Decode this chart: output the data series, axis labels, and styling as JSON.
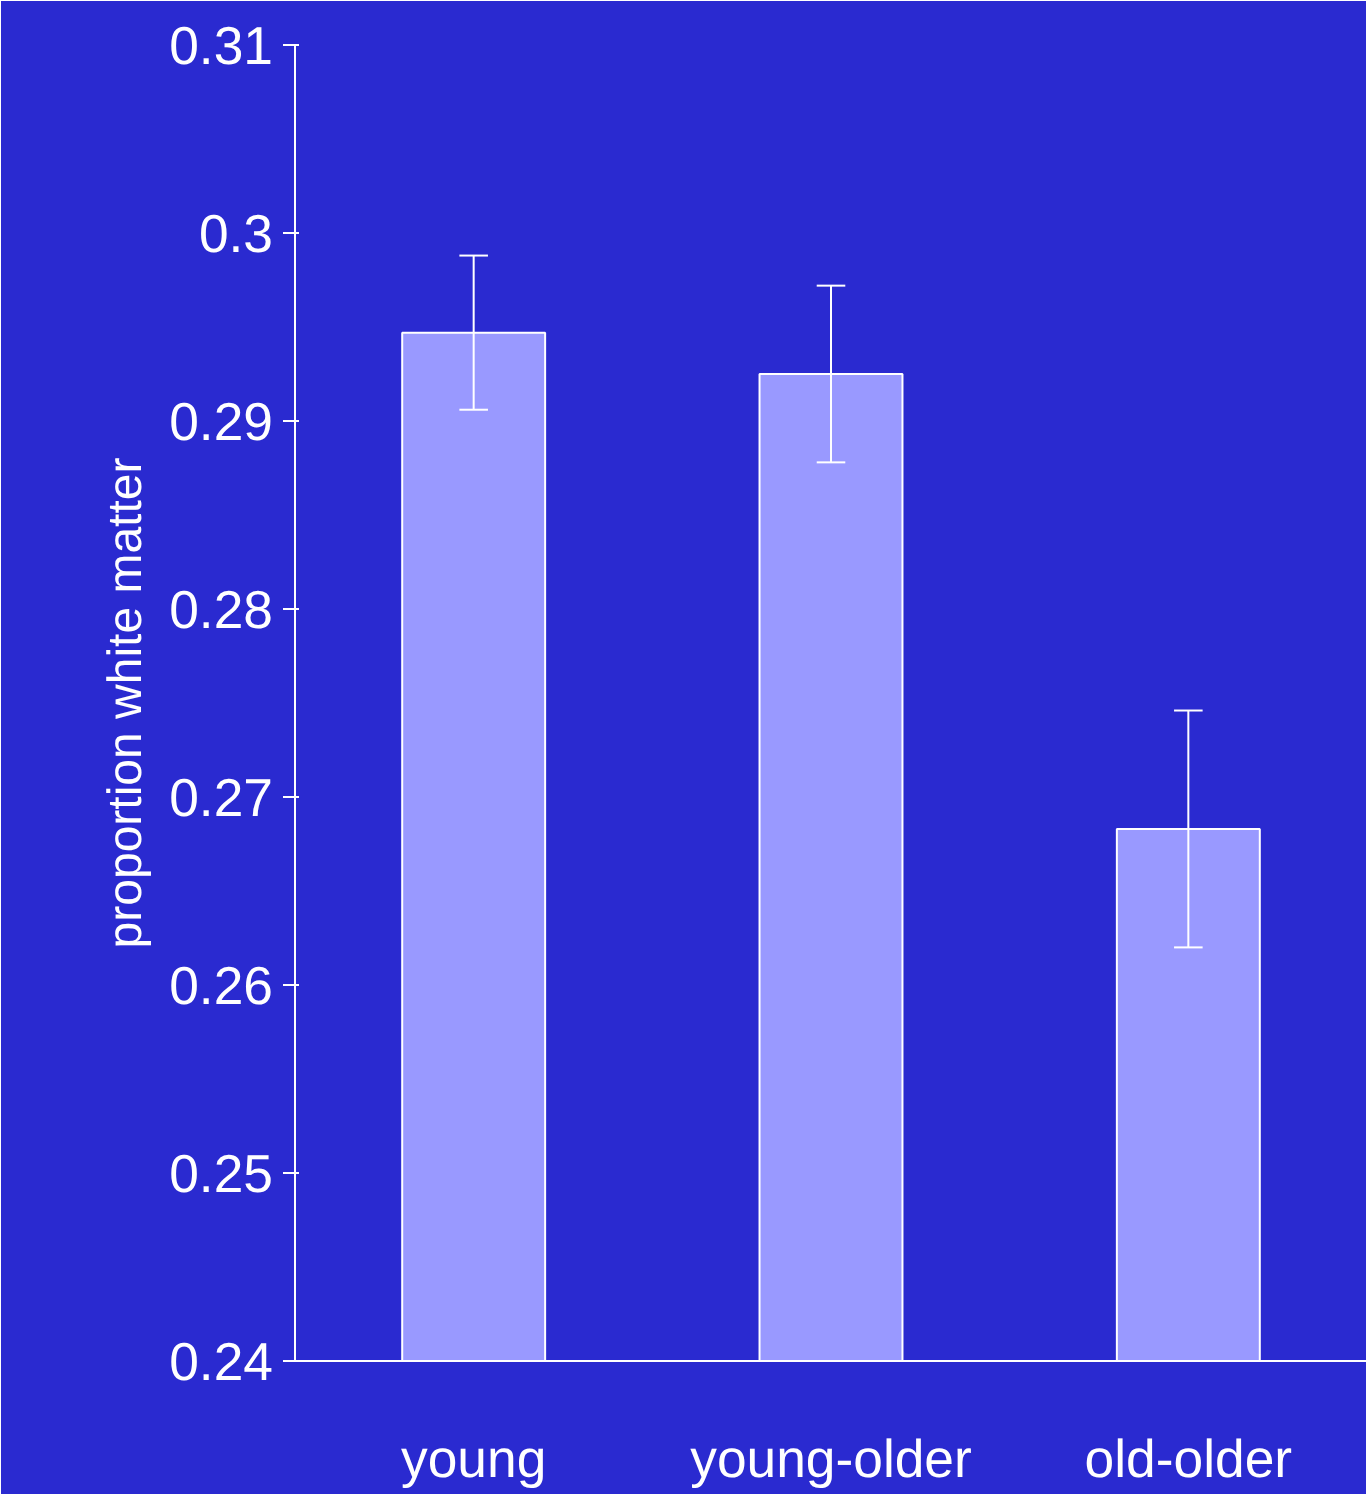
{
  "chart_data": {
    "type": "bar",
    "ylabel": "proportion white matter",
    "categories": [
      "young",
      "young-older",
      "old-older"
    ],
    "values": [
      0.2947,
      0.2925,
      0.2683
    ],
    "errors": [
      0.0041,
      0.0047,
      0.0063
    ],
    "color": "#9999ff",
    "ylim": [
      0.24,
      0.31
    ],
    "yticks": [
      0.24,
      0.25,
      0.26,
      0.27,
      0.28,
      0.29,
      {
        "value": 0.3,
        "label": "0.3"
      },
      0.31
    ],
    "grid": false
  }
}
